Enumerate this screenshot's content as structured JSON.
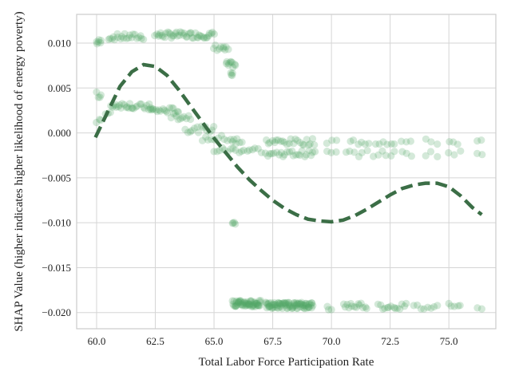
{
  "chart_data": {
    "type": "scatter",
    "title": "",
    "xlabel": "Total Labor Force Participation Rate",
    "ylabel": "SHAP Value (higher indicates higher likelihood of energy poverty)",
    "xlim": [
      59.15,
      77.0
    ],
    "ylim": [
      -0.0218,
      0.0132
    ],
    "x_ticks": [
      60.0,
      62.5,
      65.0,
      67.5,
      70.0,
      72.5,
      75.0
    ],
    "x_tick_labels": [
      "60.0",
      "62.5",
      "65.0",
      "67.5",
      "70.0",
      "72.5",
      "75.0"
    ],
    "y_ticks": [
      -0.02,
      -0.015,
      -0.01,
      -0.005,
      0.0,
      0.005,
      0.01
    ],
    "y_tick_labels": [
      "−0.020",
      "−0.015",
      "−0.010",
      "−0.005",
      "0.000",
      "0.005",
      "0.010"
    ],
    "grid": true,
    "colors": {
      "points": "#55a868",
      "trend": "#3b6e46",
      "grid": "#d5d5d5",
      "frame": "#cccccc"
    },
    "series": [
      {
        "kind": "scatter-clusters",
        "opacity": 0.25,
        "clusters": [
          {
            "x": [
              60.0,
              60.2
            ],
            "y": 0.0101,
            "n": 6
          },
          {
            "x": [
              60.5,
              62.0
            ],
            "y": 0.0107,
            "n": 22
          },
          {
            "x": [
              62.5,
              65.0
            ],
            "y": 0.0109,
            "n": 45
          },
          {
            "x": [
              65.0,
              65.4
            ],
            "y": 0.0095,
            "n": 6
          },
          {
            "x": [
              65.4,
              65.6
            ],
            "y": 0.0093,
            "n": 4
          },
          {
            "x": [
              65.5,
              65.9
            ],
            "y": 0.0076,
            "n": 10
          },
          {
            "x": [
              65.7,
              65.8
            ],
            "y": 0.0065,
            "n": 4
          },
          {
            "x": [
              60.0,
              60.2
            ],
            "y": 0.0042,
            "n": 4
          },
          {
            "x": [
              60.0,
              60.2
            ],
            "y": 0.0015,
            "n": 3
          },
          {
            "x": [
              60.4,
              60.6
            ],
            "y": 0.002,
            "n": 3
          },
          {
            "x": [
              60.6,
              61.5
            ],
            "y": 0.0031,
            "n": 15
          },
          {
            "x": [
              61.5,
              62.4
            ],
            "y": 0.0029,
            "n": 12
          },
          {
            "x": [
              62.2,
              63.5
            ],
            "y": 0.0025,
            "n": 18
          },
          {
            "x": [
              63.2,
              64.0
            ],
            "y": 0.0018,
            "n": 10
          },
          {
            "x": [
              63.8,
              65.0
            ],
            "y": 0.0004,
            "n": 14
          },
          {
            "x": [
              64.5,
              66.0
            ],
            "y": -0.0006,
            "n": 12
          },
          {
            "x": [
              65.8,
              66.2
            ],
            "y": -0.0012,
            "n": 4
          },
          {
            "x": [
              65.0,
              67.0
            ],
            "y": -0.0019,
            "n": 18
          },
          {
            "x": [
              67.2,
              69.3
            ],
            "y": -0.001,
            "n": 24
          },
          {
            "x": [
              67.2,
              69.3
            ],
            "y": -0.0023,
            "n": 24
          },
          {
            "x": [
              69.8,
              70.2
            ],
            "y": -0.001,
            "n": 3
          },
          {
            "x": [
              70.8,
              71.6
            ],
            "y": -0.001,
            "n": 6
          },
          {
            "x": [
              71.9,
              72.7
            ],
            "y": -0.001,
            "n": 6
          },
          {
            "x": [
              73.0,
              73.4
            ],
            "y": -0.001,
            "n": 3
          },
          {
            "x": [
              74.0,
              74.5
            ],
            "y": -0.001,
            "n": 3
          },
          {
            "x": [
              75.0,
              75.4
            ],
            "y": -0.001,
            "n": 3
          },
          {
            "x": [
              76.2,
              76.4
            ],
            "y": -0.001,
            "n": 2
          },
          {
            "x": [
              69.8,
              70.2
            ],
            "y": -0.0023,
            "n": 3
          },
          {
            "x": [
              70.6,
              71.5
            ],
            "y": -0.0023,
            "n": 6
          },
          {
            "x": [
              71.8,
              72.7
            ],
            "y": -0.0023,
            "n": 6
          },
          {
            "x": [
              73.0,
              73.4
            ],
            "y": -0.0023,
            "n": 3
          },
          {
            "x": [
              74.0,
              74.5
            ],
            "y": -0.0023,
            "n": 3
          },
          {
            "x": [
              75.0,
              75.5
            ],
            "y": -0.0023,
            "n": 3
          },
          {
            "x": [
              76.2,
              76.4
            ],
            "y": -0.0023,
            "n": 2
          },
          {
            "x": [
              65.8,
              65.9
            ],
            "y": -0.0098,
            "n": 4
          },
          {
            "x": [
              65.8,
              67.0
            ],
            "y": -0.019,
            "n": 60
          },
          {
            "x": [
              67.2,
              69.2
            ],
            "y": -0.0192,
            "n": 90
          },
          {
            "x": [
              69.8,
              70.0
            ],
            "y": -0.0195,
            "n": 3
          },
          {
            "x": [
              70.5,
              71.5
            ],
            "y": -0.0192,
            "n": 14
          },
          {
            "x": [
              72.0,
              73.2
            ],
            "y": -0.0193,
            "n": 14
          },
          {
            "x": [
              73.5,
              74.5
            ],
            "y": -0.0194,
            "n": 8
          },
          {
            "x": [
              75.0,
              75.5
            ],
            "y": -0.019,
            "n": 5
          },
          {
            "x": [
              76.2,
              76.4
            ],
            "y": -0.0196,
            "n": 2
          }
        ]
      },
      {
        "kind": "trend",
        "style": "dashed",
        "x": [
          59.95,
          60.5,
          61.0,
          61.5,
          62.0,
          62.5,
          63.0,
          63.5,
          64.0,
          64.5,
          65.0,
          65.5,
          66.0,
          66.5,
          67.0,
          67.5,
          68.0,
          68.5,
          69.0,
          69.5,
          70.0,
          70.5,
          71.0,
          71.5,
          72.0,
          72.5,
          73.0,
          73.5,
          74.0,
          74.5,
          75.0,
          75.5,
          76.0,
          76.4
        ],
        "y": [
          -0.0005,
          0.0025,
          0.0052,
          0.0068,
          0.0076,
          0.0074,
          0.0064,
          0.0048,
          0.003,
          0.0012,
          -0.0006,
          -0.0022,
          -0.0038,
          -0.0052,
          -0.0064,
          -0.0075,
          -0.0084,
          -0.0091,
          -0.0096,
          -0.0098,
          -0.0099,
          -0.0097,
          -0.0092,
          -0.0085,
          -0.0077,
          -0.0069,
          -0.0062,
          -0.0058,
          -0.0056,
          -0.0056,
          -0.006,
          -0.007,
          -0.0083,
          -0.0091
        ]
      }
    ]
  }
}
